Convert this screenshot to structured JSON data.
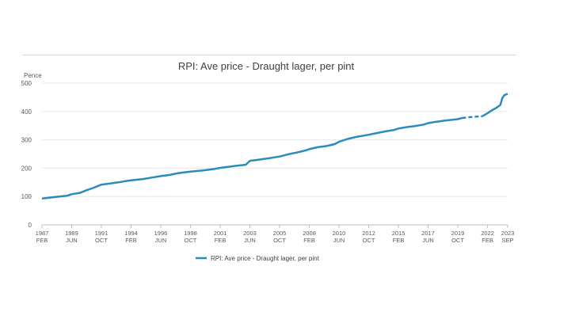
{
  "chart_data": {
    "type": "line",
    "title": "RPI: Ave price - Draught lager, per pint",
    "ylabel": "Pence",
    "xlabel": "",
    "ylim": [
      0,
      500
    ],
    "yticks": [
      0,
      100,
      200,
      300,
      400,
      500
    ],
    "grid": true,
    "legend_position": "bottom",
    "line_color": "#2a8bbd",
    "xticks": [
      {
        "date": "1987-02",
        "year": "1987",
        "month": "FEB"
      },
      {
        "date": "1989-06",
        "year": "1989",
        "month": "JUN"
      },
      {
        "date": "1991-10",
        "year": "1991",
        "month": "OCT"
      },
      {
        "date": "1994-02",
        "year": "1994",
        "month": "FEB"
      },
      {
        "date": "1996-06",
        "year": "1996",
        "month": "JUN"
      },
      {
        "date": "1998-10",
        "year": "1998",
        "month": "OCT"
      },
      {
        "date": "2001-02",
        "year": "2001",
        "month": "FEB"
      },
      {
        "date": "2003-06",
        "year": "2003",
        "month": "JUN"
      },
      {
        "date": "2005-10",
        "year": "2005",
        "month": "OCT"
      },
      {
        "date": "2008-02",
        "year": "2008",
        "month": "FEB"
      },
      {
        "date": "2010-06",
        "year": "2010",
        "month": "JUN"
      },
      {
        "date": "2012-10",
        "year": "2012",
        "month": "OCT"
      },
      {
        "date": "2015-02",
        "year": "2015",
        "month": "FEB"
      },
      {
        "date": "2017-06",
        "year": "2017",
        "month": "JUN"
      },
      {
        "date": "2019-10",
        "year": "2019",
        "month": "OCT"
      },
      {
        "date": "2022-02",
        "year": "2022",
        "month": "FEB"
      },
      {
        "date": "2023-09",
        "year": "2023",
        "month": "SEP"
      }
    ],
    "series": [
      {
        "name": "RPI: Ave price - Draught lager, per pint",
        "segments": [
          {
            "style": "solid",
            "x": [
              "1987-02",
              "1988-02",
              "1989-02",
              "1989-06",
              "1990-02",
              "1990-08",
              "1991-02",
              "1991-10",
              "1992-06",
              "1993-02",
              "1993-10",
              "1994-02",
              "1995-02",
              "1995-10",
              "1996-06",
              "1997-02",
              "1997-10",
              "1998-10",
              "1999-10",
              "2000-08",
              "2001-02",
              "2001-10",
              "2002-06",
              "2003-02",
              "2003-06",
              "2004-02",
              "2004-10",
              "2005-10",
              "2006-06",
              "2007-02",
              "2007-10",
              "2008-02",
              "2008-10",
              "2009-06",
              "2010-02",
              "2010-06",
              "2011-02",
              "2011-10",
              "2012-10",
              "2013-06",
              "2014-02",
              "2014-10",
              "2015-02",
              "2015-10",
              "2016-06",
              "2017-02",
              "2017-06",
              "2018-02",
              "2018-10",
              "2019-10",
              "2020-02"
            ],
            "y": [
              93,
              98,
              103,
              108,
              113,
              122,
              130,
              142,
              146,
              150,
              155,
              157,
              162,
              167,
              172,
              176,
              182,
              188,
              192,
              197,
              201,
              205,
              209,
              212,
              226,
              230,
              234,
              241,
              249,
              255,
              262,
              267,
              274,
              278,
              285,
              293,
              303,
              310,
              318,
              324,
              330,
              335,
              340,
              345,
              349,
              354,
              359,
              364,
              368,
              373,
              377
            ]
          },
          {
            "style": "dashed",
            "x": [
              "2020-02",
              "2020-09",
              "2021-04",
              "2021-09"
            ],
            "y": [
              377,
              380,
              382,
              383
            ]
          },
          {
            "style": "solid",
            "x": [
              "2021-09",
              "2022-02",
              "2022-06",
              "2022-10",
              "2023-02",
              "2023-04",
              "2023-06",
              "2023-09"
            ],
            "y": [
              383,
              394,
              404,
              412,
              423,
              448,
              458,
              462
            ]
          }
        ]
      }
    ]
  }
}
